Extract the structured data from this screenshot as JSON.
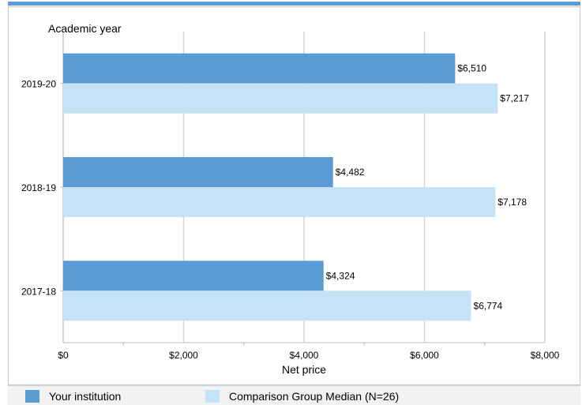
{
  "chart_data": {
    "type": "bar",
    "orientation": "horizontal",
    "ylabel": "Academic year",
    "xlabel": "Net price",
    "categories": [
      "2019-20",
      "2018-19",
      "2017-18"
    ],
    "series": [
      {
        "name": "Your institution",
        "color": "#5b9bd5",
        "values": [
          6510,
          4482,
          4324
        ],
        "labels": [
          "$6,510",
          "$4,482",
          "$4,324"
        ]
      },
      {
        "name": "Comparison Group Median (N=26)",
        "color": "#c5e3f7",
        "values": [
          7217,
          7178,
          6774
        ],
        "labels": [
          "$7,217",
          "$7,178",
          "$6,774"
        ]
      }
    ],
    "xlim": [
      0,
      8000
    ],
    "xticks": [
      0,
      2000,
      4000,
      6000,
      8000
    ],
    "xtick_labels": [
      "$0",
      "$2,000",
      "$4,000",
      "$6,000",
      "$8,000"
    ],
    "grid": true,
    "legend": "bottom"
  }
}
